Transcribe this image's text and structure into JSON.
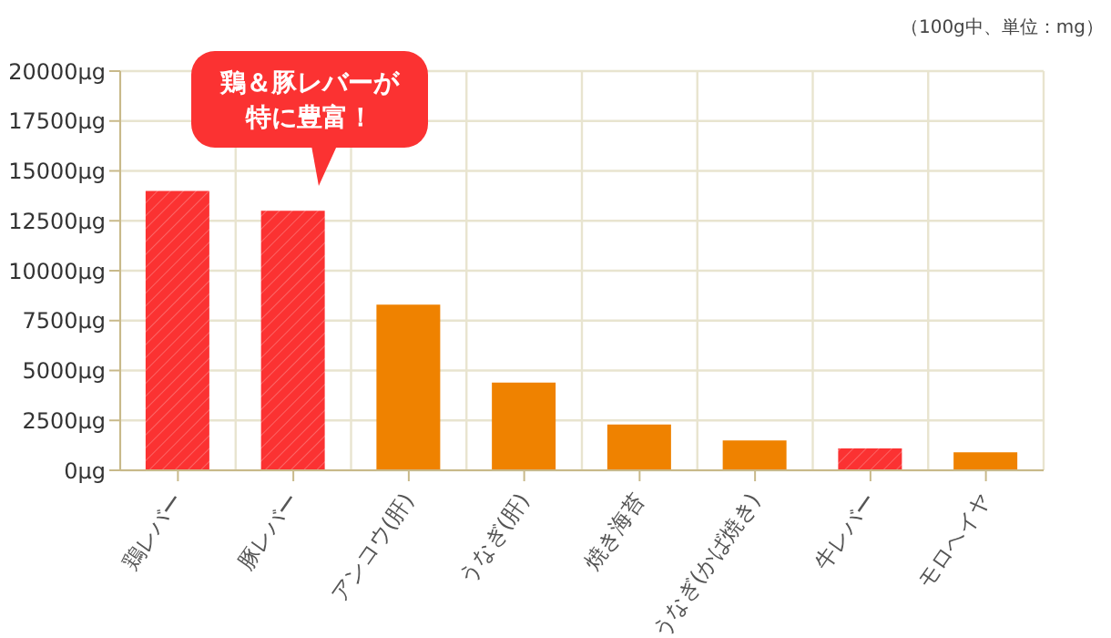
{
  "chart_data": {
    "type": "bar",
    "categories": [
      "鶏レバー",
      "豚レバー",
      "アンコウ(肝)",
      "うなぎ(肝)",
      "焼き海苔",
      "うなぎ(かば焼き)",
      "牛レバー",
      "モロヘイヤ"
    ],
    "values": [
      14000,
      13000,
      8300,
      4400,
      2300,
      1500,
      1100,
      900
    ],
    "colors": [
      "#fb3232",
      "#fb3232",
      "#ef8200",
      "#ef8200",
      "#ef8200",
      "#ef8200",
      "#fb3232",
      "#ef8200"
    ],
    "ylim": [
      0,
      20000
    ],
    "yticks": [
      {
        "value": 0,
        "label": "0µg"
      },
      {
        "value": 2500,
        "label": "2500µg"
      },
      {
        "value": 5000,
        "label": "5000µg"
      },
      {
        "value": 7500,
        "label": "7500µg"
      },
      {
        "value": 10000,
        "label": "10000µg"
      },
      {
        "value": 12500,
        "label": "12500µg"
      },
      {
        "value": 15000,
        "label": "15000µg"
      },
      {
        "value": 17500,
        "label": "17500µg"
      },
      {
        "value": 20000,
        "label": "20000µg"
      }
    ],
    "grid": true,
    "annotations": [
      "（100g中、単位：mg）",
      "鶏＆豚レバーが特に豊富！"
    ]
  }
}
